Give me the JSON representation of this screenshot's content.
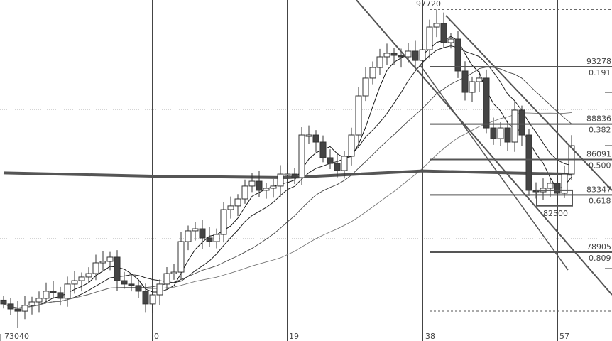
{
  "chart_data": {
    "type": "candlestick",
    "x_ticks": [
      {
        "bar": -21,
        "label": "73040"
      },
      {
        "bar": 0,
        "label": "0"
      },
      {
        "bar": 19,
        "label": "19"
      },
      {
        "bar": 38,
        "label": "38"
      },
      {
        "bar": 57,
        "label": "57"
      }
    ],
    "first_bar": -21,
    "closes": [
      74890,
      74500,
      74330,
      74780,
      75050,
      75330,
      75880,
      75770,
      75330,
      76430,
      76700,
      76980,
      77250,
      78080,
      78190,
      78520,
      76700,
      76430,
      76320,
      75880,
      74890,
      75600,
      76430,
      77250,
      77360,
      79730,
      80560,
      80720,
      80010,
      79730,
      80280,
      82210,
      82490,
      83035,
      84030,
      84410,
      83700,
      83860,
      84030,
      84960,
      84960,
      84690,
      87990,
      87990,
      87440,
      86230,
      85790,
      85240,
      86340,
      87990,
      91020,
      92400,
      93220,
      94050,
      94325,
      94160,
      94050,
      94490,
      93770,
      94600,
      96360,
      96640,
      95150,
      95425,
      92950,
      91295,
      92120,
      92400,
      88540,
      87715,
      88540,
      87440,
      89920,
      87990,
      83700,
      83585,
      83860,
      84250,
      83475,
      84960,
      87165
    ],
    "extremes": {
      "high": 97720,
      "low": 73040
    },
    "long_ma": [
      {
        "bar": -21,
        "value": 85050
      },
      {
        "bar": 0,
        "value": 84800
      },
      {
        "bar": 19,
        "value": 84690
      },
      {
        "bar": 38,
        "value": 85200
      },
      {
        "bar": 59,
        "value": 84950
      }
    ],
    "fib_levels": [
      {
        "price": 93278,
        "ratio": "0.191"
      },
      {
        "price": 88836,
        "ratio": "0.382"
      },
      {
        "price": 86091,
        "ratio": "0.500"
      },
      {
        "price": 83347,
        "ratio": "0.618"
      },
      {
        "price": 78905,
        "ratio": "0.809"
      }
    ],
    "high_label": "97720",
    "box_low_label": "82500",
    "box_low": 82500,
    "colors": {
      "up": "#ffffff",
      "down": "#444444",
      "line": "#333333",
      "ma_long": "#555555"
    }
  }
}
